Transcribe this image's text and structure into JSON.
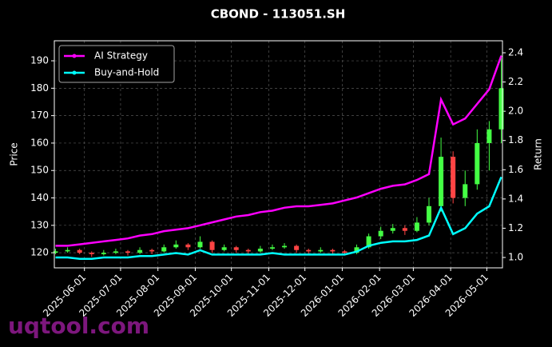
{
  "chart_data": {
    "type": "candlestick",
    "title": "CBOND - 113051.SH",
    "ylabel": "Price",
    "y2label": "Return",
    "watermark": "uqtool.com",
    "x": [
      "2025-05-08",
      "2025-05-18",
      "2025-05-28",
      "2025-06-07",
      "2025-06-17",
      "2025-06-27",
      "2025-07-07",
      "2025-07-17",
      "2025-07-27",
      "2025-08-06",
      "2025-08-16",
      "2025-08-26",
      "2025-09-05",
      "2025-09-15",
      "2025-09-25",
      "2025-10-05",
      "2025-10-15",
      "2025-10-25",
      "2025-11-04",
      "2025-11-14",
      "2025-11-24",
      "2025-12-04",
      "2025-12-14",
      "2025-12-24",
      "2026-01-03",
      "2026-01-13",
      "2026-01-23",
      "2026-02-02",
      "2026-02-12",
      "2026-02-22",
      "2026-03-04",
      "2026-03-14",
      "2026-03-24",
      "2026-04-03",
      "2026-04-13",
      "2026-04-23",
      "2026-05-03",
      "2026-05-13"
    ],
    "ohlc": {
      "open": [
        120,
        120.5,
        121,
        120,
        119.5,
        120,
        120.5,
        120,
        121,
        120.5,
        122,
        123,
        122,
        124,
        121,
        122,
        121,
        120.5,
        121.5,
        122,
        122.5,
        121,
        120.5,
        121,
        120.5,
        120,
        122,
        126,
        128,
        129,
        128,
        131,
        137,
        155,
        140,
        145,
        160,
        165
      ],
      "high": [
        121.5,
        122,
        121.5,
        120.5,
        121,
        121.5,
        121,
        122,
        121.5,
        123,
        124.5,
        123.5,
        126,
        124.5,
        123,
        122.5,
        121.5,
        122.5,
        123,
        123.5,
        123,
        121.5,
        122,
        121.5,
        121,
        123,
        127,
        129.5,
        130.5,
        130,
        133,
        140,
        162,
        157,
        150,
        165,
        168,
        192
      ],
      "low": [
        119.5,
        120,
        119.5,
        118.5,
        119,
        119.5,
        119,
        119.5,
        119.5,
        120,
        121.5,
        121,
        121.5,
        120,
        120.5,
        120,
        119.5,
        120,
        121,
        121.5,
        120,
        119.5,
        120,
        119.5,
        119,
        119.5,
        121.5,
        125,
        127,
        126.5,
        127.5,
        130,
        135,
        138,
        137,
        143,
        150,
        160
      ],
      "close": [
        120.5,
        121,
        120,
        119.5,
        120,
        120.5,
        120,
        121,
        120.5,
        122,
        123,
        122,
        124,
        121,
        122,
        121,
        120.5,
        121.5,
        122,
        122.5,
        121,
        120.5,
        121,
        120.5,
        120,
        122,
        126,
        128,
        129,
        128,
        131,
        137,
        155,
        140,
        145,
        160,
        165,
        180
      ],
      "up_color": "#44ff44",
      "down_color": "#ff4444"
    },
    "series": [
      {
        "name": "AI Strategy",
        "color": "#ff00ff",
        "axis": "y2",
        "values": [
          1.08,
          1.08,
          1.09,
          1.1,
          1.11,
          1.12,
          1.13,
          1.15,
          1.16,
          1.18,
          1.19,
          1.2,
          1.22,
          1.24,
          1.26,
          1.28,
          1.29,
          1.31,
          1.32,
          1.34,
          1.35,
          1.35,
          1.36,
          1.37,
          1.39,
          1.41,
          1.44,
          1.47,
          1.49,
          1.5,
          1.53,
          1.57,
          2.08,
          1.91,
          1.95,
          2.05,
          2.15,
          2.38
        ]
      },
      {
        "name": "Buy-and-Hold",
        "color": "#00ffff",
        "axis": "y2",
        "values": [
          1.0,
          1.0,
          0.99,
          0.99,
          1.0,
          1.0,
          1.0,
          1.01,
          1.01,
          1.02,
          1.03,
          1.02,
          1.05,
          1.02,
          1.02,
          1.02,
          1.02,
          1.02,
          1.03,
          1.02,
          1.02,
          1.02,
          1.02,
          1.02,
          1.02,
          1.04,
          1.08,
          1.1,
          1.11,
          1.11,
          1.12,
          1.15,
          1.34,
          1.16,
          1.2,
          1.3,
          1.35,
          1.55
        ]
      }
    ],
    "xlim": [
      "2025-05-07",
      "2026-05-14"
    ],
    "xticks": [
      "2025-06-01",
      "2025-07-01",
      "2025-08-01",
      "2025-09-01",
      "2025-10-01",
      "2025-11-01",
      "2025-12-01",
      "2026-01-01",
      "2026-02-01",
      "2026-03-01",
      "2026-04-01",
      "2026-05-01"
    ],
    "ylim": [
      114.5,
      197.3
    ],
    "yticks": [
      120,
      130,
      140,
      150,
      160,
      170,
      180,
      190
    ],
    "y2lim": [
      0.929,
      2.482
    ],
    "y2ticks": [
      {
        "value": 1,
        "label": "1.0"
      },
      1.2,
      1.4,
      1.6,
      1.8,
      {
        "value": 2,
        "label": "2.0"
      },
      2.2,
      2.4
    ],
    "grid": true,
    "legend": "upper left"
  }
}
